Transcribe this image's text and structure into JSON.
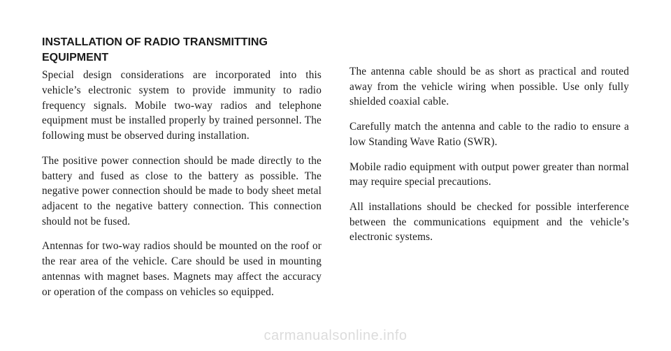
{
  "heading": "INSTALLATION OF RADIO TRANSMITTING EQUIPMENT",
  "left_paragraphs": [
    "Special design considerations are incorporated into this vehicle’s electronic system to provide immunity to radio frequency signals. Mobile two-way radios and telephone equipment must be installed properly by trained personnel. The following must be observed during installation.",
    "The positive power connection should be made directly to the battery and fused as close to the battery as possible. The negative power connection should be made to body sheet metal adjacent to the negative battery connection. This connection should not be fused.",
    "Antennas for two-way radios should be mounted on the roof or the rear area of the vehicle. Care should be used in mounting antennas with magnet bases. Magnets may affect the accuracy or operation of the compass on vehicles so equipped."
  ],
  "right_paragraphs": [
    "The antenna cable should be as short as practical and routed away from the vehicle wiring when possible. Use only fully shielded coaxial cable.",
    "Carefully match the antenna and cable to the radio to ensure a low Standing Wave Ratio (SWR).",
    "Mobile radio equipment with output power greater than normal may require special precautions.",
    "All installations should be checked for possible interference between the communications equipment and the vehicle’s electronic systems."
  ],
  "watermark": "carmanualsonline.info"
}
